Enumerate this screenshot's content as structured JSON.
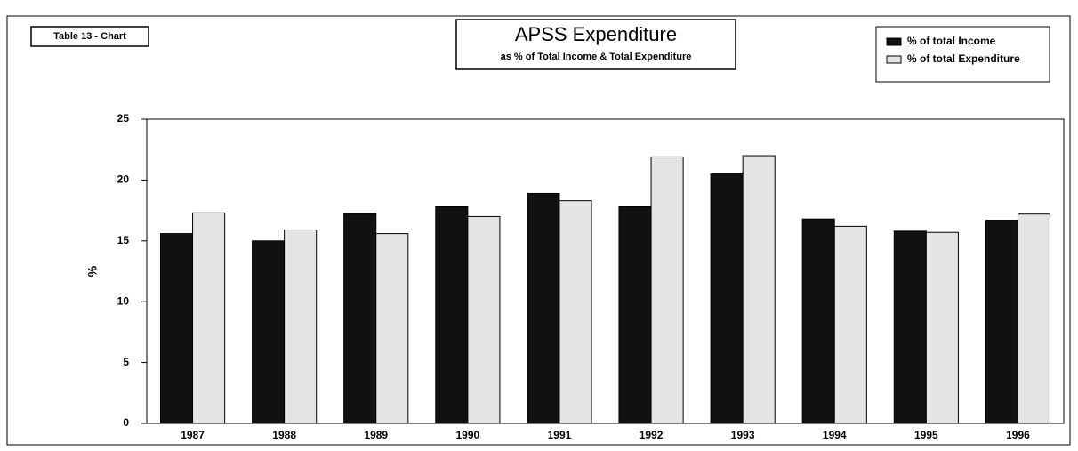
{
  "chart_data": {
    "type": "bar",
    "label": "Table 13 - Chart",
    "title": "APSS Expenditure",
    "subtitle": "as % of Total Income & Total Expenditure",
    "y_label": "%",
    "categories": [
      "1987",
      "1988",
      "1989",
      "1990",
      "1991",
      "1992",
      "1993",
      "1994",
      "1995",
      "1996"
    ],
    "series": [
      {
        "name": "% of total Income",
        "color": "#111111",
        "values": [
          15.6,
          15.0,
          17.25,
          17.8,
          18.9,
          17.8,
          20.5,
          16.8,
          15.8,
          16.7
        ]
      },
      {
        "name": "% of total Expenditure",
        "color": "#e4e4e4",
        "values": [
          17.3,
          15.9,
          15.6,
          17.0,
          18.3,
          21.9,
          22.0,
          16.2,
          15.7,
          17.2
        ]
      }
    ],
    "ylim": [
      0,
      25
    ],
    "yticks": [
      0,
      5,
      10,
      15,
      20,
      25
    ],
    "grid": false,
    "legend": "top-right"
  }
}
